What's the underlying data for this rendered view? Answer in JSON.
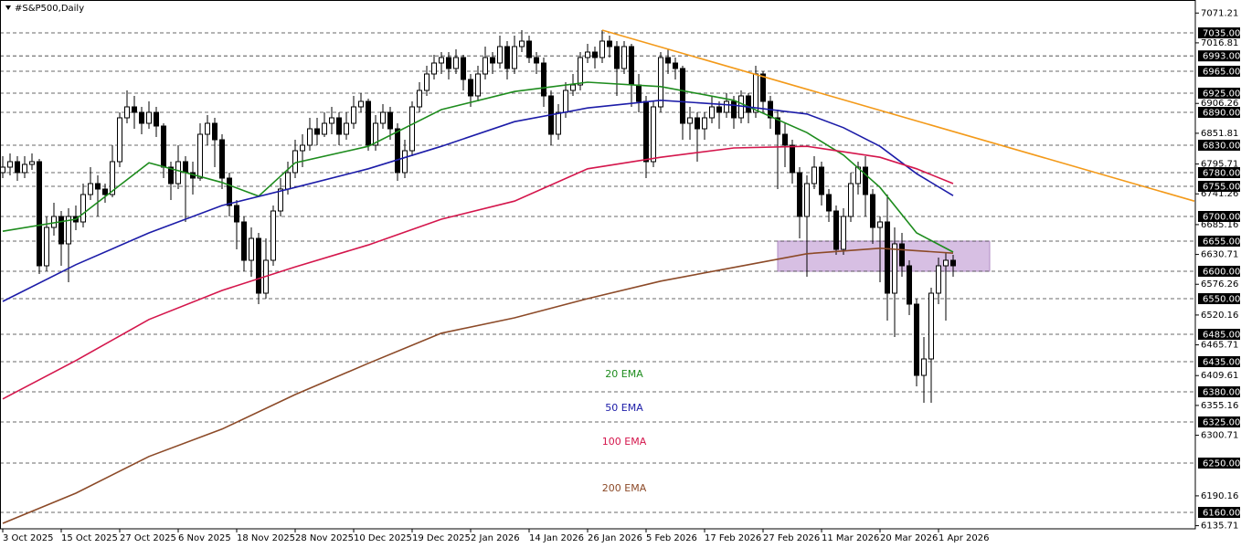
{
  "chart_data": {
    "type": "candlestick",
    "title": "#S&P500,Daily",
    "categories": [
      "3 Oct 2025",
      null,
      null,
      null,
      null,
      null,
      null,
      null,
      "15 Oct 2025",
      null,
      null,
      null,
      null,
      null,
      null,
      null,
      "27 Oct 2025",
      null,
      null,
      null,
      null,
      null,
      null,
      null,
      "6 Nov 2025",
      null,
      null,
      null,
      null,
      null,
      null,
      null,
      "18 Nov 2025",
      null,
      null,
      null,
      null,
      null,
      null,
      null,
      "28 Nov 2025",
      null,
      null,
      null,
      null,
      null,
      null,
      null,
      "10 Dec 2025",
      null,
      null,
      null,
      null,
      null,
      null,
      null,
      "19 Dec 2025",
      null,
      null,
      null,
      null,
      null,
      null,
      null,
      "2 Jan 2026",
      null,
      null,
      null,
      null,
      null,
      null,
      null,
      "14 Jan 2026",
      null,
      null,
      null,
      null,
      null,
      null,
      null,
      "26 Jan 2026",
      null,
      null,
      null,
      null,
      null,
      null,
      null,
      "5 Feb 2026",
      null,
      null,
      null,
      null,
      null,
      null,
      null,
      "17 Feb 2026",
      null,
      null,
      null,
      null,
      null,
      null,
      null,
      "27 Feb 2026",
      null,
      null,
      null,
      null,
      null,
      null,
      null,
      "11 Mar 2026",
      null,
      null,
      null,
      null,
      null,
      null,
      null,
      "20 Mar 2026",
      null,
      null,
      null,
      null,
      null,
      null,
      null,
      "1 Apr 2026",
      null,
      null
    ],
    "ohlc": [
      [
        6780,
        6810,
        6770,
        6790
      ],
      [
        6790,
        6815,
        6775,
        6800
      ],
      [
        6800,
        6810,
        6765,
        6780
      ],
      [
        6780,
        6810,
        6770,
        6795
      ],
      [
        6795,
        6815,
        6785,
        6800
      ],
      [
        6800,
        6805,
        6595,
        6610
      ],
      [
        6610,
        6700,
        6600,
        6680
      ],
      [
        6680,
        6725,
        6665,
        6700
      ],
      [
        6700,
        6710,
        6610,
        6650
      ],
      [
        6650,
        6715,
        6580,
        6700
      ],
      [
        6700,
        6720,
        6675,
        6690
      ],
      [
        6690,
        6760,
        6680,
        6740
      ],
      [
        6740,
        6790,
        6730,
        6760
      ],
      [
        6760,
        6775,
        6700,
        6750
      ],
      [
        6750,
        6760,
        6725,
        6740
      ],
      [
        6740,
        6830,
        6735,
        6800
      ],
      [
        6800,
        6890,
        6790,
        6880
      ],
      [
        6880,
        6930,
        6870,
        6900
      ],
      [
        6900,
        6920,
        6860,
        6890
      ],
      [
        6890,
        6900,
        6850,
        6870
      ],
      [
        6870,
        6910,
        6860,
        6890
      ],
      [
        6890,
        6900,
        6845,
        6865
      ],
      [
        6865,
        6870,
        6770,
        6790
      ],
      [
        6790,
        6800,
        6730,
        6760
      ],
      [
        6760,
        6830,
        6750,
        6800
      ],
      [
        6800,
        6810,
        6690,
        6780
      ],
      [
        6780,
        6800,
        6740,
        6770
      ],
      [
        6770,
        6870,
        6765,
        6850
      ],
      [
        6850,
        6885,
        6830,
        6870
      ],
      [
        6870,
        6880,
        6790,
        6840
      ],
      [
        6840,
        6850,
        6750,
        6770
      ],
      [
        6770,
        6780,
        6700,
        6720
      ],
      [
        6720,
        6730,
        6640,
        6690
      ],
      [
        6690,
        6700,
        6600,
        6620
      ],
      [
        6620,
        6680,
        6590,
        6660
      ],
      [
        6660,
        6670,
        6540,
        6560
      ],
      [
        6560,
        6660,
        6550,
        6620
      ],
      [
        6620,
        6720,
        6610,
        6710
      ],
      [
        6710,
        6770,
        6700,
        6750
      ],
      [
        6750,
        6800,
        6740,
        6780
      ],
      [
        6780,
        6840,
        6770,
        6820
      ],
      [
        6820,
        6850,
        6790,
        6830
      ],
      [
        6830,
        6880,
        6820,
        6860
      ],
      [
        6860,
        6880,
        6830,
        6850
      ],
      [
        6850,
        6890,
        6845,
        6870
      ],
      [
        6870,
        6900,
        6850,
        6880
      ],
      [
        6880,
        6890,
        6830,
        6850
      ],
      [
        6850,
        6890,
        6840,
        6870
      ],
      [
        6870,
        6920,
        6860,
        6900
      ],
      [
        6900,
        6925,
        6890,
        6910
      ],
      [
        6910,
        6915,
        6820,
        6830
      ],
      [
        6830,
        6885,
        6820,
        6870
      ],
      [
        6870,
        6905,
        6860,
        6890
      ],
      [
        6890,
        6900,
        6840,
        6860
      ],
      [
        6860,
        6870,
        6765,
        6780
      ],
      [
        6780,
        6840,
        6770,
        6820
      ],
      [
        6820,
        6910,
        6810,
        6900
      ],
      [
        6900,
        6945,
        6890,
        6930
      ],
      [
        6930,
        6975,
        6920,
        6960
      ],
      [
        6960,
        6995,
        6950,
        6980
      ],
      [
        6980,
        7000,
        6960,
        6990
      ],
      [
        6990,
        7000,
        6950,
        6970
      ],
      [
        6970,
        7005,
        6960,
        6990
      ],
      [
        6990,
        6995,
        6930,
        6950
      ],
      [
        6950,
        6960,
        6900,
        6920
      ],
      [
        6920,
        6975,
        6910,
        6960
      ],
      [
        6960,
        7010,
        6950,
        6990
      ],
      [
        6990,
        7000,
        6960,
        6980
      ],
      [
        6980,
        7030,
        6970,
        7010
      ],
      [
        7010,
        7020,
        6950,
        6970
      ],
      [
        6970,
        7030,
        6960,
        7010
      ],
      [
        7010,
        7040,
        7000,
        7020
      ],
      [
        7020,
        7030,
        6980,
        6990
      ],
      [
        6990,
        7000,
        6960,
        6980
      ],
      [
        6980,
        6990,
        6900,
        6920
      ],
      [
        6920,
        6930,
        6830,
        6850
      ],
      [
        6850,
        6905,
        6840,
        6890
      ],
      [
        6890,
        6945,
        6880,
        6930
      ],
      [
        6930,
        6960,
        6920,
        6940
      ],
      [
        6940,
        7000,
        6930,
        6990
      ],
      [
        6990,
        7015,
        6980,
        7000
      ],
      [
        7000,
        7010,
        6970,
        6990
      ],
      [
        6990,
        7040,
        6980,
        7020
      ],
      [
        7020,
        7030,
        6990,
        7010
      ],
      [
        7010,
        7020,
        6920,
        6970
      ],
      [
        6970,
        7020,
        6960,
        7010
      ],
      [
        7010,
        7015,
        6900,
        6940
      ],
      [
        6940,
        6960,
        6890,
        6910
      ],
      [
        6910,
        6920,
        6770,
        6800
      ],
      [
        6800,
        6910,
        6790,
        6900
      ],
      [
        6900,
        7000,
        6890,
        6990
      ],
      [
        6990,
        7005,
        6960,
        6980
      ],
      [
        6980,
        6990,
        6950,
        6970
      ],
      [
        6970,
        6975,
        6840,
        6870
      ],
      [
        6870,
        6900,
        6840,
        6880
      ],
      [
        6880,
        6890,
        6800,
        6860
      ],
      [
        6860,
        6890,
        6840,
        6880
      ],
      [
        6880,
        6920,
        6870,
        6900
      ],
      [
        6900,
        6910,
        6860,
        6890
      ],
      [
        6890,
        6925,
        6880,
        6910
      ],
      [
        6910,
        6920,
        6860,
        6880
      ],
      [
        6880,
        6930,
        6870,
        6920
      ],
      [
        6920,
        6925,
        6870,
        6890
      ],
      [
        6890,
        6975,
        6880,
        6960
      ],
      [
        6960,
        6965,
        6890,
        6910
      ],
      [
        6910,
        6920,
        6860,
        6880
      ],
      [
        6880,
        6895,
        6750,
        6850
      ],
      [
        6850,
        6870,
        6790,
        6830
      ],
      [
        6830,
        6840,
        6760,
        6780
      ],
      [
        6780,
        6790,
        6660,
        6700
      ],
      [
        6700,
        6775,
        6590,
        6760
      ],
      [
        6760,
        6810,
        6750,
        6790
      ],
      [
        6790,
        6800,
        6720,
        6740
      ],
      [
        6740,
        6750,
        6690,
        6710
      ],
      [
        6710,
        6720,
        6630,
        6640
      ],
      [
        6640,
        6715,
        6630,
        6700
      ],
      [
        6700,
        6780,
        6690,
        6760
      ],
      [
        6760,
        6800,
        6740,
        6790
      ],
      [
        6790,
        6810,
        6700,
        6740
      ],
      [
        6740,
        6750,
        6650,
        6680
      ],
      [
        6680,
        6700,
        6580,
        6690
      ],
      [
        6690,
        6740,
        6510,
        6560
      ],
      [
        6560,
        6680,
        6480,
        6650
      ],
      [
        6650,
        6670,
        6590,
        6610
      ],
      [
        6610,
        6620,
        6520,
        6540
      ],
      [
        6540,
        6550,
        6390,
        6410
      ],
      [
        6410,
        6480,
        6360,
        6440
      ],
      [
        6440,
        6570,
        6360,
        6560
      ],
      [
        6560,
        6625,
        6540,
        6610
      ],
      [
        6610,
        6635,
        6510,
        6620
      ],
      [
        6620,
        6630,
        6590,
        6610
      ]
    ],
    "up_color": "#ffffff",
    "down_color": "#000000",
    "series": [
      {
        "name": "20 EMA",
        "color": "#1e8c1e",
        "x": [
          0,
          10,
          20,
          30,
          35,
          40,
          50,
          60,
          70,
          80,
          90,
          100,
          110,
          115,
          120,
          125,
          130
        ],
        "values": [
          6673,
          6695,
          6798,
          6762,
          6737,
          6798,
          6828,
          6895,
          6928,
          6945,
          6937,
          6912,
          6853,
          6812,
          6753,
          6670,
          6635
        ]
      },
      {
        "name": "50 EMA",
        "color": "#1c1ca8",
        "x": [
          0,
          10,
          20,
          30,
          40,
          50,
          60,
          70,
          80,
          90,
          100,
          110,
          115,
          120,
          125,
          130
        ],
        "values": [
          6545,
          6612,
          6670,
          6720,
          6753,
          6787,
          6828,
          6873,
          6898,
          6912,
          6903,
          6887,
          6862,
          6828,
          6778,
          6738
        ]
      },
      {
        "name": "100 EMA",
        "color": "#d4164c",
        "x": [
          0,
          10,
          20,
          30,
          40,
          50,
          60,
          70,
          80,
          90,
          100,
          110,
          120,
          125,
          130
        ],
        "values": [
          6367,
          6437,
          6512,
          6565,
          6608,
          6648,
          6695,
          6728,
          6787,
          6808,
          6825,
          6828,
          6808,
          6787,
          6760
        ]
      },
      {
        "name": "200 EMA",
        "color": "#8c4a28",
        "x": [
          0,
          10,
          20,
          30,
          40,
          50,
          60,
          70,
          80,
          90,
          100,
          110,
          120,
          130
        ],
        "values": [
          6140,
          6195,
          6262,
          6312,
          6375,
          6432,
          6487,
          6515,
          6550,
          6582,
          6607,
          6632,
          6642,
          6633
        ]
      }
    ],
    "trendline": {
      "color": "#f39a1a",
      "x": [
        82,
        163
      ],
      "values": [
        7040,
        6728
      ]
    },
    "zone": {
      "color": "#c9a9d9",
      "x": [
        106,
        135
      ],
      "values": [
        6600,
        6655
      ]
    },
    "ylim": [
      6130,
      7095
    ],
    "yticks": [
      7071.21,
      7016.81,
      6906.26,
      6851.81,
      6795.71,
      6741.26,
      6685.16,
      6630.71,
      6576.26,
      6520.16,
      6465.71,
      6409.61,
      6355.16,
      6300.71,
      6190.16,
      6135.71
    ],
    "levels": [
      {
        "value": 7035,
        "label": "7035.00"
      },
      {
        "value": 6993,
        "label": "6993.00"
      },
      {
        "value": 6965,
        "label": "6965.00"
      },
      {
        "value": 6925,
        "label": "6925.00"
      },
      {
        "value": 6890,
        "label": "6890.00"
      },
      {
        "value": 6830,
        "label": "6830.00"
      },
      {
        "value": 6780,
        "label": "6780.00"
      },
      {
        "value": 6755,
        "label": "6755.00"
      },
      {
        "value": 6700,
        "label": "6700.00"
      },
      {
        "value": 6655,
        "label": "6655.00"
      },
      {
        "value": 6600,
        "label": "6600.00"
      },
      {
        "value": 6550,
        "label": "6550.00"
      },
      {
        "value": 6485,
        "label": "6485.00"
      },
      {
        "value": 6435,
        "label": "6435.00"
      },
      {
        "value": 6380,
        "label": "6380.00"
      },
      {
        "value": 6325,
        "label": "6325.00"
      },
      {
        "value": 6250,
        "label": "6250.00"
      },
      {
        "value": 6160,
        "label": "6160.00"
      }
    ]
  }
}
